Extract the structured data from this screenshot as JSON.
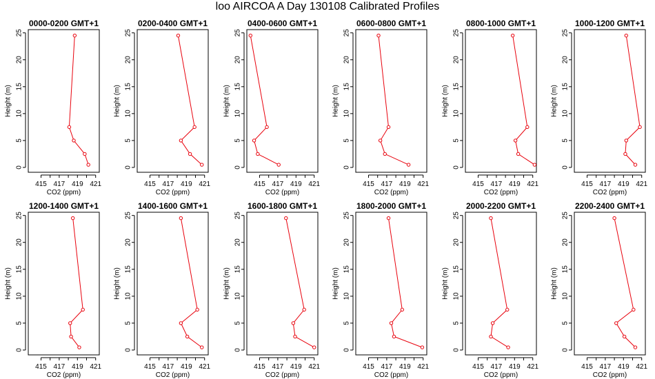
{
  "title": "loo AIRCOA A  Day 130108  Calibrated Profiles",
  "colors": {
    "series": "#e8000b",
    "axis": "#000000",
    "background": "#ffffff"
  },
  "chart_data": [
    {
      "type": "line",
      "title": "0000-0200 GMT+1",
      "xlabel": "CO2 (ppm)",
      "ylabel": "Height (m)",
      "xlim": [
        413.6,
        421.4
      ],
      "ylim": [
        -0.9,
        25.6
      ],
      "xticks": [
        415,
        417,
        419,
        421
      ],
      "yticks": [
        0,
        5,
        10,
        15,
        20,
        25
      ],
      "series": [
        {
          "x": [
            420.2,
            419.8,
            418.6,
            418.1,
            418.7
          ],
          "y": [
            0.5,
            2.5,
            5,
            7.5,
            24.5
          ]
        }
      ]
    },
    {
      "type": "line",
      "title": "0200-0400 GMT+1",
      "xlabel": "CO2 (ppm)",
      "ylabel": "Height (m)",
      "xlim": [
        413.6,
        421.4
      ],
      "ylim": [
        -0.9,
        25.6
      ],
      "xticks": [
        415,
        417,
        419,
        421
      ],
      "yticks": [
        0,
        5,
        10,
        15,
        20,
        25
      ],
      "series": [
        {
          "x": [
            420.7,
            419.4,
            418.4,
            419.9,
            418.1
          ],
          "y": [
            0.5,
            2.5,
            5,
            7.5,
            24.5
          ]
        }
      ]
    },
    {
      "type": "line",
      "title": "0400-0600 GMT+1",
      "xlabel": "CO2 (ppm)",
      "ylabel": "Height (m)",
      "xlim": [
        413.6,
        421.4
      ],
      "ylim": [
        -0.9,
        25.6
      ],
      "xticks": [
        415,
        417,
        419,
        421
      ],
      "yticks": [
        0,
        5,
        10,
        15,
        20,
        25
      ],
      "series": [
        {
          "x": [
            417.1,
            414.8,
            414.4,
            415.8,
            414.0
          ],
          "y": [
            0.5,
            2.5,
            5,
            7.5,
            24.5
          ]
        }
      ]
    },
    {
      "type": "line",
      "title": "0600-0800 GMT+1",
      "xlabel": "CO2 (ppm)",
      "ylabel": "Height (m)",
      "xlim": [
        413.6,
        421.4
      ],
      "ylim": [
        -0.9,
        25.6
      ],
      "xticks": [
        415,
        417,
        419,
        421
      ],
      "yticks": [
        0,
        5,
        10,
        15,
        20,
        25
      ],
      "series": [
        {
          "x": [
            419.4,
            416.8,
            416.3,
            417.2,
            416.1
          ],
          "y": [
            0.5,
            2.5,
            5,
            7.5,
            24.5
          ]
        }
      ]
    },
    {
      "type": "line",
      "title": "0800-1000 GMT+1",
      "xlabel": "CO2 (ppm)",
      "ylabel": "Height (m)",
      "xlim": [
        413.6,
        421.4
      ],
      "ylim": [
        -0.9,
        25.6
      ],
      "xticks": [
        415,
        417,
        419,
        421
      ],
      "yticks": [
        0,
        5,
        10,
        15,
        20,
        25
      ],
      "series": [
        {
          "x": [
            421.2,
            419.4,
            419.1,
            420.4,
            418.8
          ],
          "y": [
            0.5,
            2.5,
            5,
            7.5,
            24.5
          ]
        }
      ]
    },
    {
      "type": "line",
      "title": "1000-1200 GMT+1",
      "xlabel": "CO2 (ppm)",
      "ylabel": "Height (m)",
      "xlim": [
        413.6,
        421.4
      ],
      "ylim": [
        -0.9,
        25.6
      ],
      "xticks": [
        415,
        417,
        419,
        421
      ],
      "yticks": [
        0,
        5,
        10,
        15,
        20,
        25
      ],
      "series": [
        {
          "x": [
            420.3,
            419.2,
            419.3,
            420.8,
            419.3
          ],
          "y": [
            0.5,
            2.5,
            5,
            7.5,
            24.5
          ]
        }
      ]
    },
    {
      "type": "line",
      "title": "1200-1400 GMT+1",
      "xlabel": "CO2 (ppm)",
      "ylabel": "Height (m)",
      "xlim": [
        413.6,
        421.4
      ],
      "ylim": [
        -0.9,
        25.6
      ],
      "xticks": [
        415,
        417,
        419,
        421
      ],
      "yticks": [
        0,
        5,
        10,
        15,
        20,
        25
      ],
      "series": [
        {
          "x": [
            419.2,
            418.3,
            418.2,
            419.6,
            418.5
          ],
          "y": [
            0.5,
            2.5,
            5,
            7.5,
            24.5
          ]
        }
      ]
    },
    {
      "type": "line",
      "title": "1400-1600 GMT+1",
      "xlabel": "CO2 (ppm)",
      "ylabel": "Height (m)",
      "xlim": [
        413.6,
        421.4
      ],
      "ylim": [
        -0.9,
        25.6
      ],
      "xticks": [
        415,
        417,
        419,
        421
      ],
      "yticks": [
        0,
        5,
        10,
        15,
        20,
        25
      ],
      "series": [
        {
          "x": [
            420.7,
            419.1,
            418.4,
            420.2,
            418.4
          ],
          "y": [
            0.5,
            2.5,
            5,
            7.5,
            24.5
          ]
        }
      ]
    },
    {
      "type": "line",
      "title": "1600-1800 GMT+1",
      "xlabel": "CO2 (ppm)",
      "ylabel": "Height (m)",
      "xlim": [
        413.6,
        421.4
      ],
      "ylim": [
        -0.9,
        25.6
      ],
      "xticks": [
        415,
        417,
        419,
        421
      ],
      "yticks": [
        0,
        5,
        10,
        15,
        20,
        25
      ],
      "series": [
        {
          "x": [
            421.0,
            418.9,
            418.7,
            419.9,
            417.9
          ],
          "y": [
            0.5,
            2.5,
            5,
            7.5,
            24.5
          ]
        }
      ]
    },
    {
      "type": "line",
      "title": "1800-2000 GMT+1",
      "xlabel": "CO2 (ppm)",
      "ylabel": "Height (m)",
      "xlim": [
        413.6,
        421.4
      ],
      "ylim": [
        -0.9,
        25.6
      ],
      "xticks": [
        415,
        417,
        419,
        421
      ],
      "yticks": [
        0,
        5,
        10,
        15,
        20,
        25
      ],
      "series": [
        {
          "x": [
            420.9,
            417.8,
            417.5,
            418.7,
            417.2
          ],
          "y": [
            0.5,
            2.5,
            5,
            7.5,
            24.5
          ]
        }
      ]
    },
    {
      "type": "line",
      "title": "2000-2200 GMT+1",
      "xlabel": "CO2 (ppm)",
      "ylabel": "Height (m)",
      "xlim": [
        413.6,
        421.4
      ],
      "ylim": [
        -0.9,
        25.6
      ],
      "xticks": [
        415,
        417,
        419,
        421
      ],
      "yticks": [
        0,
        5,
        10,
        15,
        20,
        25
      ],
      "series": [
        {
          "x": [
            418.3,
            416.4,
            416.6,
            418.2,
            416.4
          ],
          "y": [
            0.5,
            2.5,
            5,
            7.5,
            24.5
          ]
        }
      ]
    },
    {
      "type": "line",
      "title": "2200-2400 GMT+1",
      "xlabel": "CO2 (ppm)",
      "ylabel": "Height (m)",
      "xlim": [
        413.6,
        421.4
      ],
      "ylim": [
        -0.9,
        25.6
      ],
      "xticks": [
        415,
        417,
        419,
        421
      ],
      "yticks": [
        0,
        5,
        10,
        15,
        20,
        25
      ],
      "series": [
        {
          "x": [
            420.3,
            419.1,
            418.2,
            420.1,
            418.0
          ],
          "y": [
            0.5,
            2.5,
            5,
            7.5,
            24.5
          ]
        }
      ]
    }
  ]
}
